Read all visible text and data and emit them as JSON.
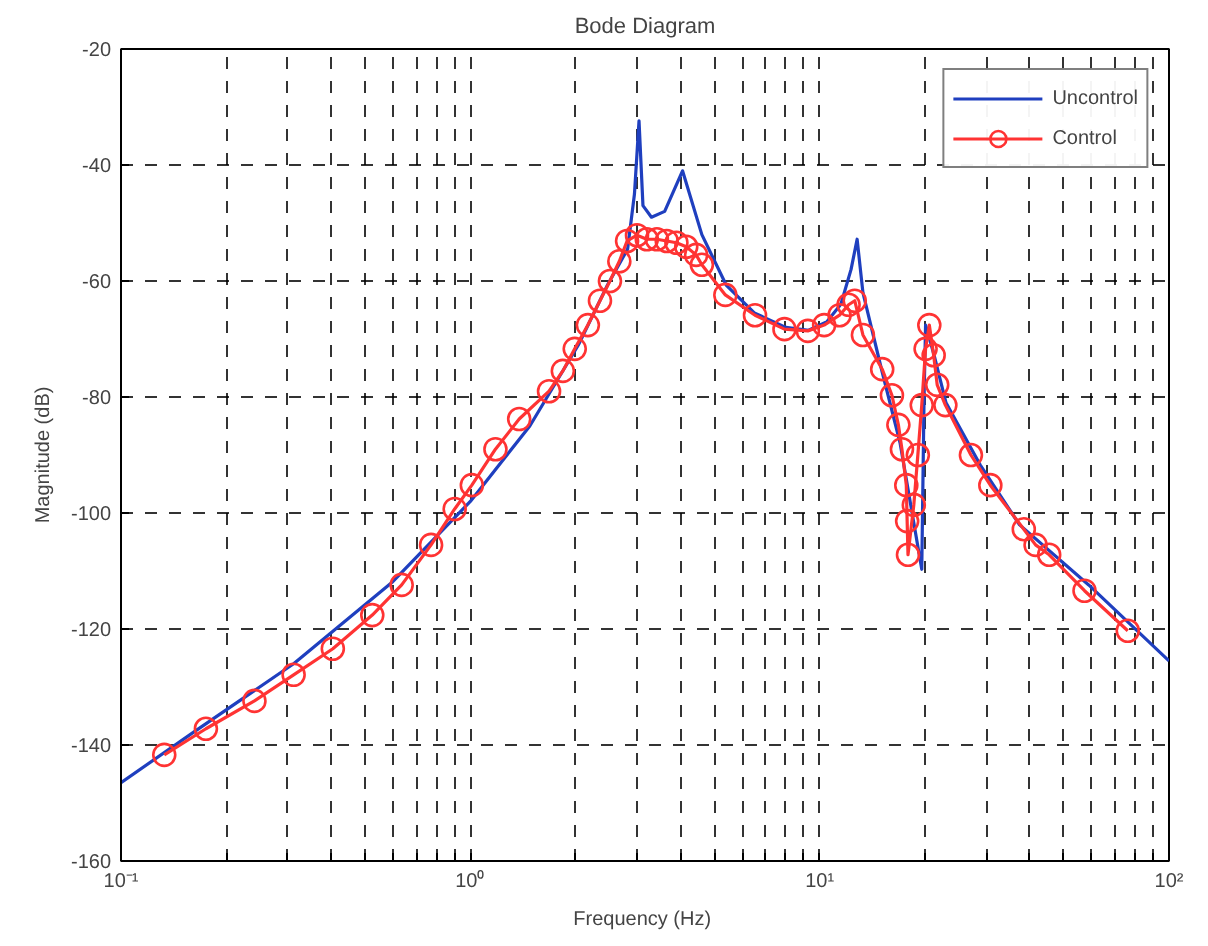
{
  "chart_data": {
    "type": "line",
    "title": "Bode Diagram",
    "xlabel": "Frequency  (Hz)",
    "ylabel": "Magnitude (dB)",
    "log": "x",
    "grid": true,
    "legend": "top right",
    "line_style": "solid",
    "xlim": [
      0.1,
      100
    ],
    "ylim": [
      -160,
      -20
    ],
    "xticks": [
      {
        "value": 0.1,
        "label": "10⁻¹"
      },
      {
        "value": 0.2,
        "label": null
      },
      {
        "value": 0.3,
        "label": null
      },
      {
        "value": 0.4,
        "label": null
      },
      {
        "value": 0.5,
        "label": null
      },
      {
        "value": 0.6,
        "label": null
      },
      {
        "value": 0.7,
        "label": null
      },
      {
        "value": 0.8,
        "label": null
      },
      {
        "value": 0.9,
        "label": null
      },
      {
        "value": 1,
        "label": "10⁰"
      },
      {
        "value": 2,
        "label": null
      },
      {
        "value": 3,
        "label": null
      },
      {
        "value": 4,
        "label": null
      },
      {
        "value": 5,
        "label": null
      },
      {
        "value": 6,
        "label": null
      },
      {
        "value": 7,
        "label": null
      },
      {
        "value": 8,
        "label": null
      },
      {
        "value": 9,
        "label": null
      },
      {
        "value": 10,
        "label": "10¹"
      },
      {
        "value": 20,
        "label": null
      },
      {
        "value": 30,
        "label": null
      },
      {
        "value": 40,
        "label": null
      },
      {
        "value": 50,
        "label": null
      },
      {
        "value": 60,
        "label": null
      },
      {
        "value": 70,
        "label": null
      },
      {
        "value": 80,
        "label": null
      },
      {
        "value": 90,
        "label": null
      },
      {
        "value": 100,
        "label": "10²"
      }
    ],
    "yticks": [
      -160,
      -140,
      -120,
      -100,
      -80,
      -60,
      -40,
      -20
    ],
    "series": [
      {
        "name": "Uncontrol",
        "color": "#1f3fbf",
        "marker": "none",
        "x": [
          0.1,
          0.163,
          0.312,
          0.596,
          1.0,
          1.48,
          2.04,
          2.47,
          2.82,
          2.95,
          3.04,
          3.12,
          3.3,
          3.6,
          4.05,
          4.6,
          5.4,
          6.5,
          8.0,
          9.3,
          10.5,
          11.5,
          12.3,
          12.8,
          13.3,
          15,
          17,
          19.6,
          19.9,
          20.1,
          21.2,
          23,
          28.8,
          37.3,
          58.9,
          100
        ],
        "values": [
          -146.5,
          -137.6,
          -126,
          -112,
          -98,
          -85,
          -71,
          -60.7,
          -54.5,
          -45,
          -32.4,
          -47,
          -49,
          -48,
          -41,
          -52,
          -60.7,
          -65.5,
          -68,
          -68.5,
          -67,
          -64,
          -58,
          -52.8,
          -62,
          -75,
          -88,
          -109.7,
          -80,
          -67.6,
          -72.5,
          -81,
          -91.7,
          -102,
          -112.4,
          -125.5
        ]
      },
      {
        "name": "Control",
        "color": "#ff3333",
        "marker": "circle",
        "x": [
          0.133,
          0.175,
          0.241,
          0.312,
          0.404,
          0.524,
          0.636,
          0.772,
          0.902,
          1.01,
          1.18,
          1.38,
          1.68,
          1.84,
          1.99,
          2.17,
          2.35,
          2.51,
          2.67,
          2.81,
          3.0,
          3.2,
          3.42,
          3.65,
          3.89,
          4.15,
          4.43,
          4.6,
          5.37,
          6.53,
          7.93,
          9.25,
          10.3,
          11.4,
          12.1,
          12.6,
          13.3,
          15.1,
          16.1,
          16.8,
          17.2,
          17.7,
          17.8,
          17.9,
          18.6,
          19.1,
          19.6,
          20.1,
          20.6,
          21.2,
          21.7,
          22.9,
          27.1,
          30.8,
          38.4,
          41.5,
          45.4,
          57.3,
          76.2
        ],
        "values": [
          -141.7,
          -137.2,
          -132.4,
          -127.9,
          -123.4,
          -117.6,
          -112.4,
          -105.5,
          -99.3,
          -95.2,
          -89.0,
          -83.8,
          -79.0,
          -75.5,
          -71.7,
          -67.6,
          -63.4,
          -60.0,
          -56.6,
          -53.1,
          -52.1,
          -52.8,
          -52.8,
          -53.1,
          -53.4,
          -54.1,
          -55.5,
          -57.2,
          -62.4,
          -65.9,
          -68.3,
          -68.6,
          -67.6,
          -65.9,
          -64.1,
          -63.4,
          -69.3,
          -75.2,
          -79.7,
          -84.8,
          -89.0,
          -95.2,
          -101.4,
          -107.2,
          -98.6,
          -90.0,
          -81.4,
          -71.7,
          -67.6,
          -72.8,
          -77.9,
          -81.4,
          -90.0,
          -95.2,
          -102.8,
          -105.5,
          -107.2,
          -113.4,
          -120.3
        ]
      }
    ]
  }
}
